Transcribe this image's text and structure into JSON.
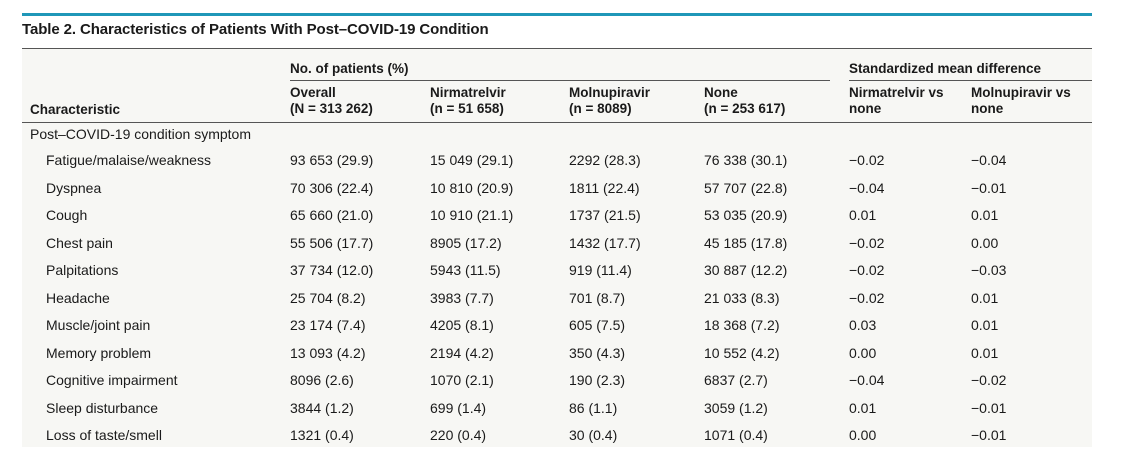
{
  "title": "Table 2. Characteristics of Patients With Post–COVID-19 Condition",
  "header": {
    "group_patients": "No. of patients (%)",
    "group_smd": "Standardized mean difference",
    "characteristic": "Characteristic",
    "overall": [
      "Overall",
      "(N = 313 262)"
    ],
    "nirmatrelvir": [
      "Nirmatrelvir",
      "(n = 51 658)"
    ],
    "molnupiravir": [
      "Molnupiravir",
      "(n = 8089)"
    ],
    "none": [
      "None",
      "(n = 253 617)"
    ],
    "smd_nirmatrelvir": [
      "Nirmatrelvir vs",
      "none"
    ],
    "smd_molnupiravir": [
      "Molnupiravir vs",
      "none"
    ]
  },
  "section_label": "Post–COVID-19 condition symptom",
  "rows": [
    {
      "characteristic": "Fatigue/malaise/weakness",
      "overall": "93 653 (29.9)",
      "nirmatrelvir": "15 049 (29.1)",
      "molnupiravir": "2292 (28.3)",
      "none": "76 338 (30.1)",
      "smd_nirmatrelvir": "−0.02",
      "smd_molnupiravir": "−0.04"
    },
    {
      "characteristic": "Dyspnea",
      "overall": "70 306 (22.4)",
      "nirmatrelvir": "10 810 (20.9)",
      "molnupiravir": "1811 (22.4)",
      "none": "57 707 (22.8)",
      "smd_nirmatrelvir": "−0.04",
      "smd_molnupiravir": "−0.01"
    },
    {
      "characteristic": "Cough",
      "overall": "65 660 (21.0)",
      "nirmatrelvir": "10 910 (21.1)",
      "molnupiravir": "1737 (21.5)",
      "none": "53 035 (20.9)",
      "smd_nirmatrelvir": "0.01",
      "smd_molnupiravir": "0.01"
    },
    {
      "characteristic": "Chest pain",
      "overall": "55 506 (17.7)",
      "nirmatrelvir": "8905 (17.2)",
      "molnupiravir": "1432 (17.7)",
      "none": "45 185 (17.8)",
      "smd_nirmatrelvir": "−0.02",
      "smd_molnupiravir": "0.00"
    },
    {
      "characteristic": "Palpitations",
      "overall": "37 734 (12.0)",
      "nirmatrelvir": "5943 (11.5)",
      "molnupiravir": "919 (11.4)",
      "none": "30 887 (12.2)",
      "smd_nirmatrelvir": "−0.02",
      "smd_molnupiravir": "−0.03"
    },
    {
      "characteristic": "Headache",
      "overall": "25 704 (8.2)",
      "nirmatrelvir": "3983 (7.7)",
      "molnupiravir": "701 (8.7)",
      "none": "21 033 (8.3)",
      "smd_nirmatrelvir": "−0.02",
      "smd_molnupiravir": "0.01"
    },
    {
      "characteristic": "Muscle/joint pain",
      "overall": "23 174 (7.4)",
      "nirmatrelvir": "4205 (8.1)",
      "molnupiravir": "605 (7.5)",
      "none": "18 368 (7.2)",
      "smd_nirmatrelvir": "0.03",
      "smd_molnupiravir": "0.01"
    },
    {
      "characteristic": "Memory problem",
      "overall": "13 093 (4.2)",
      "nirmatrelvir": "2194 (4.2)",
      "molnupiravir": "350 (4.3)",
      "none": "10 552 (4.2)",
      "smd_nirmatrelvir": "0.00",
      "smd_molnupiravir": "0.01"
    },
    {
      "characteristic": "Cognitive impairment",
      "overall": "8096 (2.6)",
      "nirmatrelvir": "1070 (2.1)",
      "molnupiravir": "190 (2.3)",
      "none": "6837 (2.7)",
      "smd_nirmatrelvir": "−0.04",
      "smd_molnupiravir": "−0.02"
    },
    {
      "characteristic": "Sleep disturbance",
      "overall": "3844 (1.2)",
      "nirmatrelvir": "699 (1.4)",
      "molnupiravir": "86 (1.1)",
      "none": "3059 (1.2)",
      "smd_nirmatrelvir": "0.01",
      "smd_molnupiravir": "−0.01"
    },
    {
      "characteristic": "Loss of taste/smell",
      "overall": "1321 (0.4)",
      "nirmatrelvir": "220 (0.4)",
      "molnupiravir": "30 (0.4)",
      "none": "1071 (0.4)",
      "smd_nirmatrelvir": "0.00",
      "smd_molnupiravir": "−0.01"
    }
  ]
}
